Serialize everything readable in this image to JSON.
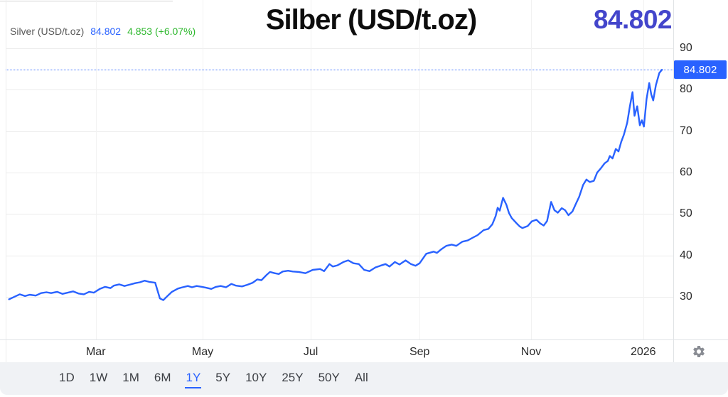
{
  "header": {
    "legend_symbol": "Silver (USD/t.oz)",
    "legend_price": "84.802",
    "legend_change": "4.853 (+6.07%)",
    "title": "Silber (USD/t.oz)",
    "big_price": "84.802"
  },
  "colors": {
    "line": "#2962FF",
    "price_chip_bg": "#2962FF",
    "price_chip_text": "#ffffff",
    "change_green": "#2eb82e",
    "big_price_blue": "#4345cb",
    "grid": "#ececec",
    "axis_text": "#2a2a2a",
    "gear_gray": "#8a8d94"
  },
  "chart_data": {
    "type": "line",
    "title": "Silber (USD/t.oz)",
    "xlabel": "",
    "ylabel": "USD/t.oz",
    "grid": true,
    "legend_position": "top-left",
    "timeframe": "1Y",
    "current_price": 84.802,
    "current_price_label": "84.802",
    "y_ticks": [
      30,
      40,
      50,
      60,
      70,
      80,
      90
    ],
    "ylim": [
      19.7,
      101.3
    ],
    "x_ticks": [
      {
        "label": "Mar",
        "f": 0.135
      },
      {
        "label": "May",
        "f": 0.295
      },
      {
        "label": "Jul",
        "f": 0.457
      },
      {
        "label": "Sep",
        "f": 0.62
      },
      {
        "label": "Nov",
        "f": 0.787
      },
      {
        "label": "2026",
        "f": 0.955
      }
    ],
    "series": [
      {
        "name": "Silver (USD/t.oz)",
        "color": "#2962FF",
        "points": [
          [
            0.005,
            29.4
          ],
          [
            0.013,
            30.0
          ],
          [
            0.021,
            30.6
          ],
          [
            0.029,
            30.2
          ],
          [
            0.036,
            30.5
          ],
          [
            0.045,
            30.3
          ],
          [
            0.053,
            30.9
          ],
          [
            0.061,
            31.1
          ],
          [
            0.068,
            30.9
          ],
          [
            0.077,
            31.2
          ],
          [
            0.085,
            30.7
          ],
          [
            0.093,
            31.0
          ],
          [
            0.101,
            31.3
          ],
          [
            0.109,
            30.8
          ],
          [
            0.117,
            30.6
          ],
          [
            0.125,
            31.2
          ],
          [
            0.132,
            31.0
          ],
          [
            0.141,
            31.9
          ],
          [
            0.149,
            32.4
          ],
          [
            0.157,
            32.1
          ],
          [
            0.162,
            32.7
          ],
          [
            0.17,
            33.0
          ],
          [
            0.178,
            32.6
          ],
          [
            0.185,
            32.9
          ],
          [
            0.194,
            33.3
          ],
          [
            0.201,
            33.5
          ],
          [
            0.208,
            33.9
          ],
          [
            0.215,
            33.6
          ],
          [
            0.224,
            33.4
          ],
          [
            0.231,
            29.6
          ],
          [
            0.236,
            29.2
          ],
          [
            0.243,
            30.3
          ],
          [
            0.249,
            31.2
          ],
          [
            0.258,
            32.0
          ],
          [
            0.265,
            32.3
          ],
          [
            0.273,
            32.6
          ],
          [
            0.279,
            32.3
          ],
          [
            0.286,
            32.6
          ],
          [
            0.294,
            32.4
          ],
          [
            0.3,
            32.2
          ],
          [
            0.308,
            31.9
          ],
          [
            0.315,
            32.4
          ],
          [
            0.322,
            32.6
          ],
          [
            0.33,
            32.3
          ],
          [
            0.338,
            33.1
          ],
          [
            0.345,
            32.7
          ],
          [
            0.354,
            32.5
          ],
          [
            0.362,
            32.9
          ],
          [
            0.37,
            33.4
          ],
          [
            0.377,
            34.2
          ],
          [
            0.383,
            34.0
          ],
          [
            0.391,
            35.3
          ],
          [
            0.396,
            36.0
          ],
          [
            0.403,
            35.7
          ],
          [
            0.409,
            35.5
          ],
          [
            0.415,
            36.1
          ],
          [
            0.423,
            36.3
          ],
          [
            0.43,
            36.1
          ],
          [
            0.439,
            36.0
          ],
          [
            0.449,
            35.7
          ],
          [
            0.46,
            36.5
          ],
          [
            0.471,
            36.7
          ],
          [
            0.477,
            36.2
          ],
          [
            0.485,
            37.9
          ],
          [
            0.49,
            37.3
          ],
          [
            0.497,
            37.6
          ],
          [
            0.506,
            38.4
          ],
          [
            0.513,
            38.8
          ],
          [
            0.521,
            38.1
          ],
          [
            0.529,
            37.9
          ],
          [
            0.537,
            36.5
          ],
          [
            0.545,
            36.2
          ],
          [
            0.554,
            37.1
          ],
          [
            0.561,
            37.5
          ],
          [
            0.569,
            37.9
          ],
          [
            0.575,
            37.3
          ],
          [
            0.583,
            38.4
          ],
          [
            0.59,
            37.8
          ],
          [
            0.599,
            38.8
          ],
          [
            0.607,
            37.9
          ],
          [
            0.614,
            37.5
          ],
          [
            0.62,
            38.1
          ],
          [
            0.63,
            40.4
          ],
          [
            0.641,
            40.9
          ],
          [
            0.646,
            40.6
          ],
          [
            0.652,
            41.4
          ],
          [
            0.66,
            42.3
          ],
          [
            0.668,
            42.6
          ],
          [
            0.675,
            42.3
          ],
          [
            0.684,
            43.3
          ],
          [
            0.692,
            43.6
          ],
          [
            0.7,
            44.3
          ],
          [
            0.707,
            44.9
          ],
          [
            0.716,
            46.1
          ],
          [
            0.723,
            46.4
          ],
          [
            0.729,
            47.5
          ],
          [
            0.734,
            49.5
          ],
          [
            0.737,
            51.5
          ],
          [
            0.74,
            50.8
          ],
          [
            0.745,
            53.9
          ],
          [
            0.75,
            52.2
          ],
          [
            0.754,
            50.2
          ],
          [
            0.758,
            49.0
          ],
          [
            0.765,
            47.8
          ],
          [
            0.77,
            47.0
          ],
          [
            0.774,
            46.6
          ],
          [
            0.782,
            47.1
          ],
          [
            0.788,
            48.2
          ],
          [
            0.795,
            48.6
          ],
          [
            0.801,
            47.7
          ],
          [
            0.806,
            47.2
          ],
          [
            0.811,
            48.3
          ],
          [
            0.817,
            52.9
          ],
          [
            0.822,
            50.9
          ],
          [
            0.827,
            50.3
          ],
          [
            0.833,
            51.4
          ],
          [
            0.838,
            50.9
          ],
          [
            0.843,
            49.7
          ],
          [
            0.849,
            50.6
          ],
          [
            0.854,
            52.4
          ],
          [
            0.859,
            54.1
          ],
          [
            0.865,
            57.0
          ],
          [
            0.87,
            58.3
          ],
          [
            0.875,
            57.7
          ],
          [
            0.881,
            58.0
          ],
          [
            0.886,
            60.0
          ],
          [
            0.891,
            60.9
          ],
          [
            0.897,
            62.2
          ],
          [
            0.902,
            62.8
          ],
          [
            0.905,
            64.0
          ],
          [
            0.909,
            63.4
          ],
          [
            0.914,
            65.7
          ],
          [
            0.918,
            65.1
          ],
          [
            0.922,
            67.4
          ],
          [
            0.926,
            69.1
          ],
          [
            0.931,
            72.0
          ],
          [
            0.935,
            76.0
          ],
          [
            0.939,
            79.4
          ],
          [
            0.942,
            73.7
          ],
          [
            0.946,
            76.0
          ],
          [
            0.95,
            71.4
          ],
          [
            0.953,
            72.6
          ],
          [
            0.956,
            71.1
          ],
          [
            0.96,
            77.7
          ],
          [
            0.964,
            81.6
          ],
          [
            0.967,
            78.9
          ],
          [
            0.97,
            77.4
          ],
          [
            0.974,
            81.1
          ],
          [
            0.979,
            84.0
          ],
          [
            0.983,
            84.8
          ]
        ]
      }
    ]
  },
  "toolbar": {
    "buttons": [
      "1D",
      "1W",
      "1M",
      "6M",
      "1Y",
      "5Y",
      "10Y",
      "25Y",
      "50Y",
      "All"
    ],
    "active": "1Y"
  },
  "footer": {
    "gear_icon": "settings-gear"
  }
}
